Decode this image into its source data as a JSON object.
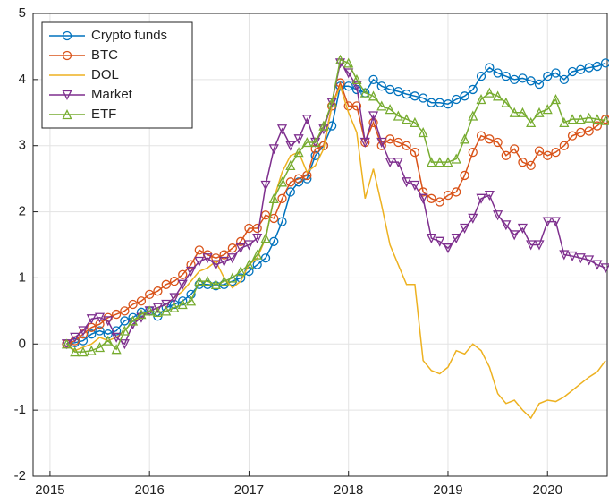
{
  "chart_data": {
    "type": "line",
    "x": [
      2015.167,
      2015.25,
      2015.333,
      2015.417,
      2015.5,
      2015.583,
      2015.667,
      2015.75,
      2015.833,
      2015.917,
      2016,
      2016.083,
      2016.167,
      2016.25,
      2016.333,
      2016.417,
      2016.5,
      2016.583,
      2016.667,
      2016.75,
      2016.833,
      2016.917,
      2017,
      2017.083,
      2017.167,
      2017.25,
      2017.333,
      2017.417,
      2017.5,
      2017.583,
      2017.667,
      2017.75,
      2017.833,
      2017.917,
      2018,
      2018.083,
      2018.167,
      2018.25,
      2018.333,
      2018.417,
      2018.5,
      2018.583,
      2018.667,
      2018.75,
      2018.833,
      2018.917,
      2019,
      2019.083,
      2019.167,
      2019.25,
      2019.333,
      2019.417,
      2019.5,
      2019.583,
      2019.667,
      2019.75,
      2019.833,
      2019.917,
      2020,
      2020.083,
      2020.167,
      2020.25,
      2020.333,
      2020.417,
      2020.5,
      2020.583
    ],
    "series": [
      {
        "name": "Crypto funds",
        "color": "#0072BD",
        "marker": "o",
        "values": [
          0,
          0.02,
          0.05,
          0.15,
          0.2,
          0.15,
          0.2,
          0.35,
          0.4,
          0.48,
          0.5,
          0.42,
          0.55,
          0.6,
          0.65,
          0.75,
          0.9,
          0.9,
          0.88,
          0.9,
          0.95,
          1.0,
          1.1,
          1.2,
          1.3,
          1.55,
          1.85,
          2.3,
          2.45,
          2.5,
          2.85,
          3.0,
          3.3,
          3.9,
          3.9,
          3.85,
          3.8,
          4.0,
          3.9,
          3.85,
          3.82,
          3.78,
          3.75,
          3.72,
          3.65,
          3.65,
          3.63,
          3.7,
          3.75,
          3.85,
          4.05,
          4.18,
          4.1,
          4.05,
          4.0,
          4.02,
          3.98,
          3.93,
          4.05,
          4.1,
          4.0,
          4.12,
          4.15,
          4.18,
          4.2,
          4.25
        ]
      },
      {
        "name": "BTC",
        "color": "#D95319",
        "marker": "o",
        "values": [
          0,
          0.05,
          0.15,
          0.25,
          0.3,
          0.4,
          0.45,
          0.5,
          0.6,
          0.65,
          0.75,
          0.8,
          0.9,
          0.95,
          1.05,
          1.2,
          1.42,
          1.35,
          1.3,
          1.35,
          1.45,
          1.55,
          1.75,
          1.75,
          1.95,
          1.9,
          2.2,
          2.45,
          2.5,
          2.55,
          2.95,
          3.0,
          3.6,
          3.95,
          3.6,
          3.6,
          3.05,
          3.35,
          3.0,
          3.1,
          3.05,
          3.0,
          2.9,
          2.3,
          2.2,
          2.15,
          2.25,
          2.3,
          2.55,
          2.9,
          3.15,
          3.1,
          3.05,
          2.85,
          2.95,
          2.75,
          2.7,
          2.92,
          2.85,
          2.9,
          3.0,
          3.15,
          3.2,
          3.22,
          3.3,
          3.4
        ]
      },
      {
        "name": "DOL",
        "color": "#EDB120",
        "values": [
          0,
          -0.1,
          -0.05,
          0,
          0.1,
          0.05,
          0.1,
          0.2,
          0.35,
          0.4,
          0.5,
          0.55,
          0.6,
          0.7,
          0.8,
          0.95,
          1.1,
          1.15,
          1.25,
          1.0,
          0.85,
          0.95,
          1.2,
          1.3,
          1.6,
          2.2,
          2.6,
          2.85,
          2.9,
          2.6,
          2.7,
          2.95,
          3.6,
          3.9,
          3.5,
          3.2,
          2.2,
          2.65,
          2.1,
          1.5,
          1.2,
          0.9,
          0.9,
          -0.25,
          -0.4,
          -0.45,
          -0.35,
          -0.1,
          -0.15,
          0.0,
          -0.1,
          -0.35,
          -0.75,
          -0.9,
          -0.85,
          -1.0,
          -1.12,
          -0.9,
          -0.85,
          -0.87,
          -0.8,
          -0.7,
          -0.6,
          -0.5,
          -0.42,
          -0.25
        ]
      },
      {
        "name": "Market",
        "color": "#7E2F8E",
        "marker": "v",
        "values": [
          0,
          0.1,
          0.2,
          0.38,
          0.4,
          0.35,
          0.1,
          0.0,
          0.3,
          0.4,
          0.5,
          0.55,
          0.6,
          0.7,
          0.9,
          1.1,
          1.25,
          1.3,
          1.2,
          1.25,
          1.3,
          1.45,
          1.5,
          1.6,
          2.4,
          2.95,
          3.25,
          3.0,
          3.1,
          3.4,
          3.05,
          3.25,
          3.65,
          4.25,
          4.1,
          3.9,
          3.05,
          3.45,
          3.05,
          2.75,
          2.75,
          2.45,
          2.4,
          2.2,
          1.6,
          1.55,
          1.45,
          1.6,
          1.75,
          1.9,
          2.2,
          2.25,
          1.95,
          1.8,
          1.65,
          1.75,
          1.5,
          1.5,
          1.85,
          1.85,
          1.35,
          1.33,
          1.3,
          1.27,
          1.2,
          1.15
        ]
      },
      {
        "name": "ETF",
        "color": "#77AC30",
        "marker": "^",
        "values": [
          0,
          -0.12,
          -0.12,
          -0.1,
          -0.05,
          0.05,
          -0.08,
          0.2,
          0.35,
          0.45,
          0.5,
          0.48,
          0.5,
          0.55,
          0.6,
          0.65,
          0.95,
          0.95,
          0.9,
          0.95,
          1.0,
          1.1,
          1.2,
          1.35,
          1.6,
          2.2,
          2.45,
          2.7,
          2.9,
          3.05,
          3.05,
          3.3,
          3.65,
          4.3,
          4.25,
          4.0,
          3.8,
          3.75,
          3.6,
          3.55,
          3.45,
          3.4,
          3.35,
          3.2,
          2.75,
          2.75,
          2.75,
          2.8,
          3.1,
          3.45,
          3.7,
          3.8,
          3.75,
          3.65,
          3.5,
          3.5,
          3.35,
          3.5,
          3.55,
          3.7,
          3.35,
          3.4,
          3.4,
          3.42,
          3.4,
          3.38
        ]
      }
    ],
    "xlim": [
      2014.83,
      2020.6
    ],
    "xticks": [
      2015,
      2016,
      2017,
      2018,
      2019,
      2020
    ],
    "ylim": [
      -2,
      5
    ],
    "yticks": [
      -2,
      -1,
      0,
      1,
      2,
      3,
      4,
      5
    ],
    "grid": true,
    "legend": "top-left"
  }
}
